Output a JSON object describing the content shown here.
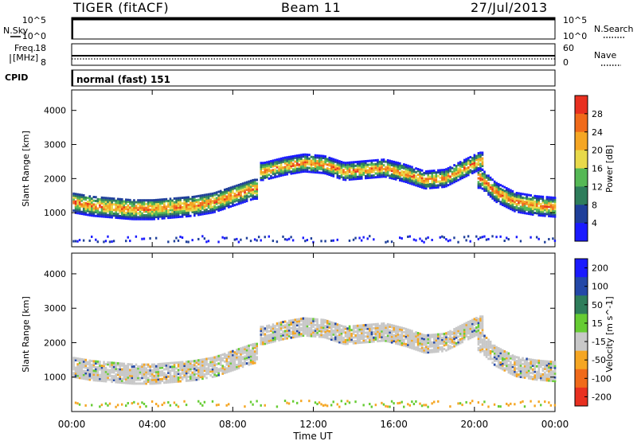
{
  "header": {
    "radar": "TIGER (fitACF)",
    "beam": "Beam 11",
    "date": "27/Jul/2013"
  },
  "top_panels": {
    "nsky": {
      "label": "N.Sky",
      "ticks": [
        "10^5",
        "10^0"
      ],
      "right_label": "N.Search",
      "right_ticks": [
        "10^5",
        "10^0"
      ]
    },
    "freq": {
      "label_line1": "Freq.",
      "label_line2": "[MHz]",
      "ticks": [
        "18",
        "8"
      ],
      "right_label": "Nave",
      "right_ticks": [
        "60",
        "0"
      ]
    },
    "cpid": {
      "label": "CPID",
      "text": "normal (fast) 151"
    }
  },
  "colors": {
    "power": [
      "#1a1aff",
      "#1f3f9a",
      "#2e7d5b",
      "#55b855",
      "#e8d94a",
      "#f5a623",
      "#f06a1a",
      "#e83020"
    ],
    "velocity": [
      "#1a1aff",
      "#2448a8",
      "#2e7d5b",
      "#66cc33",
      "#c8c8c8",
      "#f5a623",
      "#f06a1a",
      "#e83020"
    ]
  },
  "chart_data": [
    {
      "type": "heatmap",
      "ylabel": "Slant Range [km]",
      "yticks": [
        "1000",
        "2000",
        "3000",
        "4000"
      ],
      "ylim": [
        0,
        4600
      ],
      "colorbar_label": "Power [dB]",
      "colorbar_ticks": [
        "4",
        "8",
        "12",
        "16",
        "20",
        "24",
        "28"
      ],
      "colorbar_range": [
        0,
        32
      ],
      "scatter_bands": [
        {
          "t": [
            0,
            1,
            2,
            3,
            4,
            5,
            6,
            7,
            8,
            9
          ],
          "center_km": [
            1300,
            1200,
            1150,
            1100,
            1100,
            1150,
            1200,
            1300,
            1500,
            1700
          ],
          "halfwidth_km": 300
        },
        {
          "t": [
            9.5,
            10.5,
            11.5,
            12.5,
            13.5,
            14.5,
            15.5,
            16.5,
            17.5,
            18.5,
            19.5,
            20.2
          ],
          "center_km": [
            2200,
            2350,
            2450,
            2400,
            2200,
            2250,
            2300,
            2150,
            1950,
            2000,
            2300,
            2500
          ],
          "halfwidth_km": 250
        },
        {
          "t": [
            20.3,
            21,
            22,
            23,
            24
          ],
          "center_km": [
            2000,
            1600,
            1300,
            1200,
            1150
          ],
          "halfwidth_km": 280
        }
      ]
    },
    {
      "type": "heatmap",
      "ylabel": "Slant Range [km]",
      "yticks": [
        "1000",
        "2000",
        "3000",
        "4000"
      ],
      "ylim": [
        0,
        4600
      ],
      "colorbar_label": "Velocity [m s^-1]",
      "colorbar_ticks": [
        "200",
        "100",
        "50",
        "15",
        "-15",
        "-50",
        "-100",
        "-200"
      ],
      "colorbar_range": [
        -200,
        200
      ]
    }
  ],
  "x_axis": {
    "ticks": [
      "00:00",
      "04:00",
      "08:00",
      "12:00",
      "16:00",
      "20:00",
      "00:00"
    ],
    "xlim_hours": [
      0,
      24
    ],
    "label": "Time UT"
  }
}
